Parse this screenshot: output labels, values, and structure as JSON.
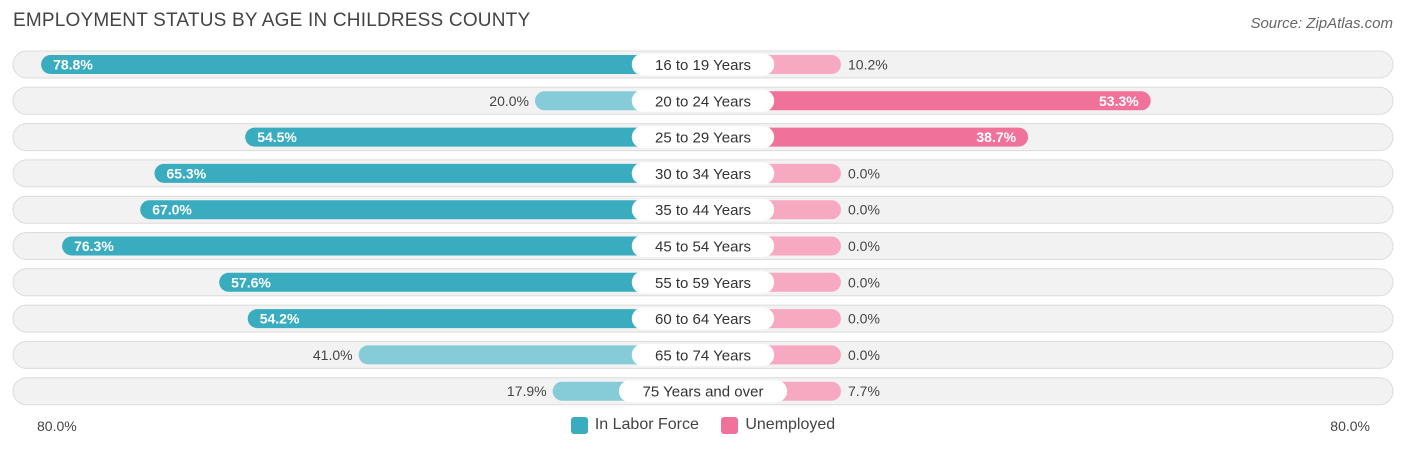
{
  "header": {
    "title": "EMPLOYMENT STATUS BY AGE IN CHILDRESS COUNTY",
    "source": "Source: ZipAtlas.com"
  },
  "axis": {
    "left_label": "80.0%",
    "right_label": "80.0%"
  },
  "legend": {
    "labor_label": "In Labor Force",
    "unemployed_label": "Unemployed"
  },
  "colors": {
    "labor": "#3aacc0",
    "labor_light": "#86ccd8",
    "unemployed": "#f0719a",
    "unemployed_light": "#f7a9c2"
  },
  "chart_data": {
    "type": "bar",
    "orientation": "horizontal-diverging",
    "title": "EMPLOYMENT STATUS BY AGE IN CHILDRESS COUNTY",
    "categories": [
      "16 to 19 Years",
      "20 to 24 Years",
      "25 to 29 Years",
      "30 to 34 Years",
      "35 to 44 Years",
      "45 to 54 Years",
      "55 to 59 Years",
      "60 to 64 Years",
      "65 to 74 Years",
      "75 Years and over"
    ],
    "series": [
      {
        "name": "In Labor Force",
        "values": [
          78.8,
          20.0,
          54.5,
          65.3,
          67.0,
          76.3,
          57.6,
          54.2,
          41.0,
          17.9
        ]
      },
      {
        "name": "Unemployed",
        "values": [
          10.2,
          53.3,
          38.7,
          0.0,
          0.0,
          0.0,
          0.0,
          0.0,
          0.0,
          7.7
        ]
      }
    ],
    "xlim": [
      0,
      80
    ],
    "unit": "%",
    "legend_position": "bottom-center"
  }
}
